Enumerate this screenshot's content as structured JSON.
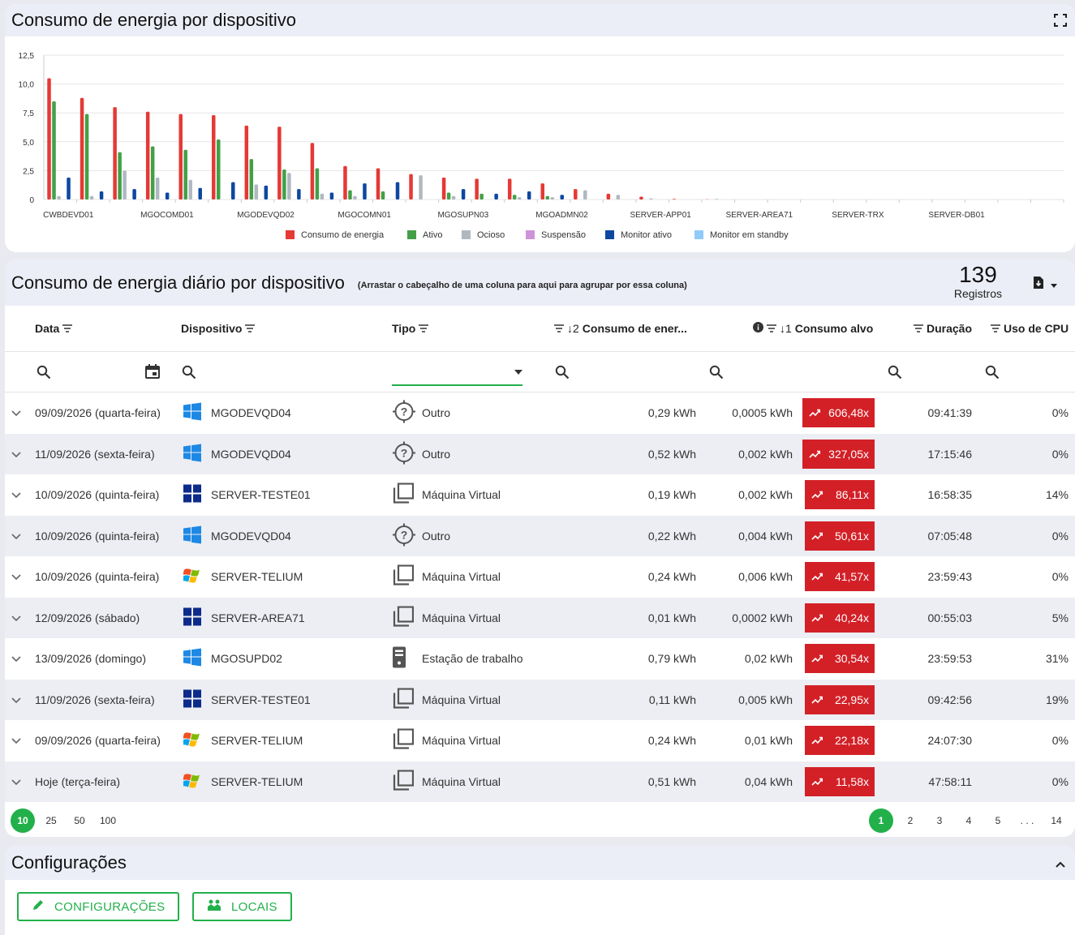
{
  "chart_panel": {
    "title": "Consumo de energia por dispositivo",
    "expand_icon": "fullscreen-icon"
  },
  "chart_data": {
    "type": "bar",
    "yticks": [
      "12,5",
      "10,0",
      "7,5",
      "5,0",
      "2,5",
      "0"
    ],
    "ylim": [
      0,
      12.5
    ],
    "grid": true,
    "legend_position": "bottom",
    "x_labels": [
      "CWBDEVD01",
      "MGOCOMD01",
      "MGODEVQD02",
      "MGOCOMN01",
      "MGOSUPN03",
      "MGOADMN02",
      "SERVER-APP01",
      "SERVER-AREA71",
      "SERVER-TRX",
      "SERVER-DB01"
    ],
    "series": [
      {
        "name": "Consumo de energia",
        "color": "#e53935",
        "values": [
          10.5,
          8.8,
          8.0,
          7.6,
          7.4,
          7.3,
          6.4,
          6.3,
          4.9,
          2.9,
          2.7,
          2.2,
          1.9,
          1.8,
          1.8,
          1.4,
          0.9,
          0.5,
          0.25,
          0.05,
          0.02,
          0,
          0,
          0,
          0,
          0,
          0,
          0,
          0,
          0,
          0
        ]
      },
      {
        "name": "Ativo",
        "color": "#43a047",
        "values": [
          8.5,
          7.4,
          4.1,
          4.6,
          4.3,
          5.2,
          3.5,
          2.6,
          2.7,
          0.8,
          0.7,
          0,
          0.6,
          0.5,
          0.4,
          0.3,
          0,
          0,
          0,
          0,
          0,
          0,
          0,
          0,
          0,
          0,
          0,
          0,
          0,
          0,
          0
        ]
      },
      {
        "name": "Ocioso",
        "color": "#b0b8c0",
        "values": [
          0.3,
          0.3,
          2.5,
          1.9,
          1.7,
          0,
          1.3,
          2.3,
          0.5,
          0.3,
          0,
          2.1,
          0.3,
          0,
          0.2,
          0.2,
          0.8,
          0.4,
          0.1,
          0,
          0.05,
          0,
          0,
          0,
          0,
          0,
          0,
          0,
          0,
          0,
          0
        ]
      },
      {
        "name": "Suspensão",
        "color": "#ce93d8",
        "values": [
          0,
          0,
          0,
          0,
          0,
          0,
          0,
          0,
          0,
          0,
          0,
          0,
          0,
          0,
          0,
          0,
          0,
          0,
          0,
          0,
          0,
          0,
          0,
          0,
          0,
          0,
          0,
          0,
          0,
          0,
          0
        ]
      },
      {
        "name": "Monitor ativo",
        "color": "#0d47a1",
        "values": [
          1.9,
          0.7,
          0.9,
          0.6,
          1.0,
          1.5,
          1.2,
          0.9,
          0.6,
          1.4,
          1.5,
          0,
          0.9,
          0.5,
          0.7,
          0.4,
          0,
          0,
          0,
          0,
          0,
          0,
          0,
          0,
          0,
          0,
          0,
          0,
          0,
          0,
          0
        ]
      },
      {
        "name": "Monitor em standby",
        "color": "#90caf9",
        "values": [
          0,
          0,
          0,
          0,
          0,
          0,
          0,
          0,
          0,
          0,
          0,
          0,
          0,
          0,
          0,
          0,
          0,
          0,
          0,
          0,
          0,
          0,
          0,
          0,
          0,
          0,
          0,
          0,
          0,
          0,
          0
        ]
      }
    ]
  },
  "table_panel": {
    "title": "Consumo de energia diário por dispositivo",
    "hint": "(Arrastar o cabeçalho de uma coluna para aqui para agrupar por essa coluna)",
    "records_count": "139",
    "records_label": "Registros",
    "export_icon": "file-export-icon",
    "columns": {
      "data": "Data",
      "dispositivo": "Dispositivo",
      "tipo": "Tipo",
      "consumo_sort": "↓2",
      "consumo": "Consumo de ener...",
      "alvo_sort": "↓1",
      "alvo": "Consumo alvo",
      "duracao": "Duração",
      "cpu": "Uso de CPU"
    },
    "rows": [
      {
        "date": "09/09/2026 (quarta-feira)",
        "os": "windows-10-icon",
        "device": "MGODEVQD04",
        "type_icon": "question-target-icon",
        "type": "Outro",
        "consumo": "0,29 kWh",
        "alvo": "0,0005 kWh",
        "ratio": "606,48x",
        "duracao": "09:41:39",
        "cpu": "0%"
      },
      {
        "date": "11/09/2026 (sexta-feira)",
        "os": "windows-10-icon",
        "device": "MGODEVQD04",
        "type_icon": "question-target-icon",
        "type": "Outro",
        "consumo": "0,52 kWh",
        "alvo": "0,002 kWh",
        "ratio": "327,05x",
        "duracao": "17:15:46",
        "cpu": "0%"
      },
      {
        "date": "10/09/2026 (quinta-feira)",
        "os": "windows-server-icon",
        "device": "SERVER-TESTE01",
        "type_icon": "virtual-machine-icon",
        "type": "Máquina Virtual",
        "consumo": "0,19 kWh",
        "alvo": "0,002 kWh",
        "ratio": "86,11x",
        "duracao": "16:58:35",
        "cpu": "14%"
      },
      {
        "date": "10/09/2026 (quinta-feira)",
        "os": "windows-10-icon",
        "device": "MGODEVQD04",
        "type_icon": "question-target-icon",
        "type": "Outro",
        "consumo": "0,22 kWh",
        "alvo": "0,004 kWh",
        "ratio": "50,61x",
        "duracao": "07:05:48",
        "cpu": "0%"
      },
      {
        "date": "10/09/2026 (quinta-feira)",
        "os": "windows-xp-icon",
        "device": "SERVER-TELIUM",
        "type_icon": "virtual-machine-icon",
        "type": "Máquina Virtual",
        "consumo": "0,24 kWh",
        "alvo": "0,006 kWh",
        "ratio": "41,57x",
        "duracao": "23:59:43",
        "cpu": "0%"
      },
      {
        "date": "12/09/2026 (sábado)",
        "os": "windows-server-icon",
        "device": "SERVER-AREA71",
        "type_icon": "virtual-machine-icon",
        "type": "Máquina Virtual",
        "consumo": "0,01 kWh",
        "alvo": "0,0002 kWh",
        "ratio": "40,24x",
        "duracao": "00:55:03",
        "cpu": "5%"
      },
      {
        "date": "13/09/2026 (domingo)",
        "os": "windows-10-icon",
        "device": "MGOSUPD02",
        "type_icon": "workstation-icon",
        "type": "Estação de trabalho",
        "consumo": "0,79 kWh",
        "alvo": "0,02 kWh",
        "ratio": "30,54x",
        "duracao": "23:59:53",
        "cpu": "31%"
      },
      {
        "date": "11/09/2026 (sexta-feira)",
        "os": "windows-server-icon",
        "device": "SERVER-TESTE01",
        "type_icon": "virtual-machine-icon",
        "type": "Máquina Virtual",
        "consumo": "0,11 kWh",
        "alvo": "0,005 kWh",
        "ratio": "22,95x",
        "duracao": "09:42:56",
        "cpu": "19%"
      },
      {
        "date": "09/09/2026 (quarta-feira)",
        "os": "windows-xp-icon",
        "device": "SERVER-TELIUM",
        "type_icon": "virtual-machine-icon",
        "type": "Máquina Virtual",
        "consumo": "0,24 kWh",
        "alvo": "0,01 kWh",
        "ratio": "22,18x",
        "duracao": "24:07:30",
        "cpu": "0%"
      },
      {
        "date": "Hoje (terça-feira)",
        "os": "windows-xp-icon",
        "device": "SERVER-TELIUM",
        "type_icon": "virtual-machine-icon",
        "type": "Máquina Virtual",
        "consumo": "0,51 kWh",
        "alvo": "0,04 kWh",
        "ratio": "11,58x",
        "duracao": "47:58:11",
        "cpu": "0%"
      }
    ],
    "page_sizes": [
      "10",
      "25",
      "50",
      "100"
    ],
    "selected_page_size": "10",
    "pages": [
      "1",
      "2",
      "3",
      "4",
      "5",
      ". . .",
      "14"
    ],
    "current_page": "1"
  },
  "settings_panel": {
    "title": "Configurações",
    "collapse_icon": "chevron-up-icon",
    "btn_config": "CONFIGURAÇÕES",
    "btn_locais": "LOCAIS"
  },
  "colors": {
    "accent": "#22b04b",
    "danger": "#d32027",
    "header_bg": "#eceef7"
  }
}
